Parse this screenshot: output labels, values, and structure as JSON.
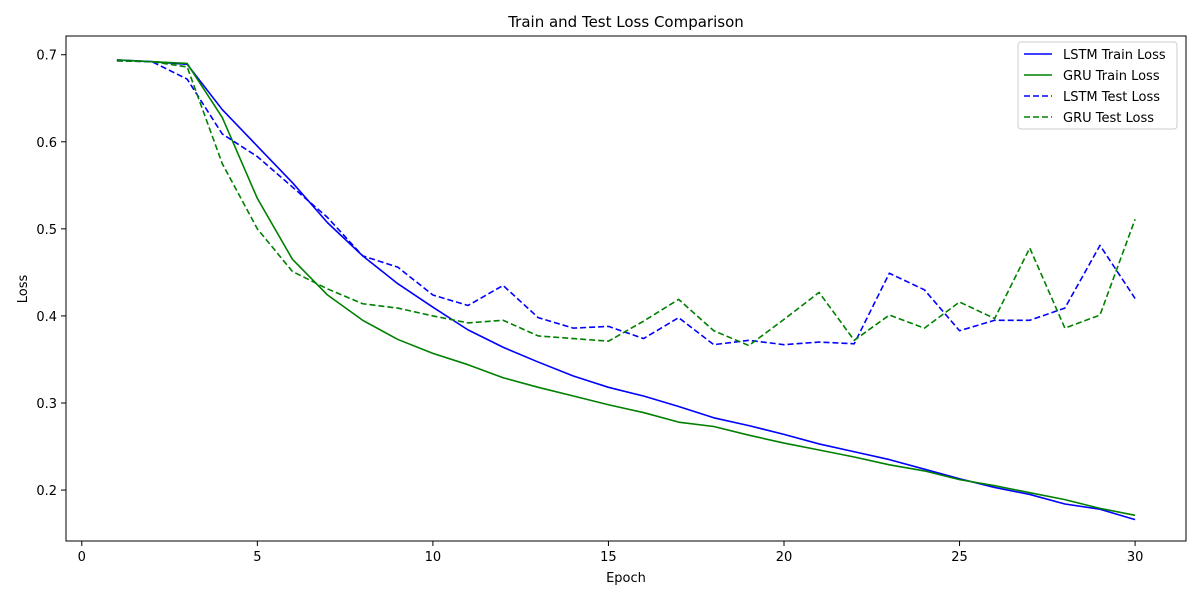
{
  "chart_data": {
    "type": "line",
    "title": "Train and Test Loss Comparison",
    "xlabel": "Epoch",
    "ylabel": "Loss",
    "xlim": [
      -0.45,
      31.45
    ],
    "ylim": [
      0.1415,
      0.7215
    ],
    "xticks": [
      0,
      5,
      10,
      15,
      20,
      25,
      30
    ],
    "yticks": [
      0.2,
      0.3,
      0.4,
      0.5,
      0.6,
      0.7
    ],
    "grid": false,
    "legend_position": "top-right",
    "x": [
      1,
      2,
      3,
      4,
      5,
      6,
      7,
      8,
      9,
      10,
      11,
      12,
      13,
      14,
      15,
      16,
      17,
      18,
      19,
      20,
      21,
      22,
      23,
      24,
      25,
      26,
      27,
      28,
      29,
      30
    ],
    "series": [
      {
        "name": "LSTM Train Loss",
        "color": "#0000ff",
        "dash": "solid",
        "values": [
          0.694,
          0.692,
          0.689,
          0.637,
          0.595,
          0.553,
          0.507,
          0.469,
          0.437,
          0.41,
          0.384,
          0.364,
          0.347,
          0.331,
          0.318,
          0.308,
          0.296,
          0.283,
          0.274,
          0.264,
          0.253,
          0.244,
          0.235,
          0.224,
          0.213,
          0.203,
          0.195,
          0.184,
          0.178,
          0.166
        ]
      },
      {
        "name": "GRU Train Loss",
        "color": "#008000",
        "dash": "solid",
        "values": [
          0.694,
          0.692,
          0.69,
          0.628,
          0.535,
          0.465,
          0.424,
          0.395,
          0.373,
          0.357,
          0.344,
          0.329,
          0.318,
          0.308,
          0.298,
          0.289,
          0.278,
          0.273,
          0.263,
          0.254,
          0.246,
          0.238,
          0.229,
          0.222,
          0.212,
          0.205,
          0.197,
          0.189,
          0.179,
          0.171
        ]
      },
      {
        "name": "LSTM Test Loss",
        "color": "#0000ff",
        "dash": "dashed",
        "values": [
          0.693,
          0.692,
          0.672,
          0.609,
          0.583,
          0.548,
          0.513,
          0.469,
          0.456,
          0.424,
          0.412,
          0.435,
          0.398,
          0.386,
          0.388,
          0.374,
          0.398,
          0.367,
          0.372,
          0.367,
          0.37,
          0.368,
          0.449,
          0.43,
          0.383,
          0.395,
          0.395,
          0.409,
          0.481,
          0.42
        ]
      },
      {
        "name": "GRU Test Loss",
        "color": "#008000",
        "dash": "dashed",
        "values": [
          0.693,
          0.692,
          0.686,
          0.575,
          0.5,
          0.451,
          0.431,
          0.414,
          0.409,
          0.4,
          0.392,
          0.395,
          0.377,
          0.374,
          0.371,
          0.394,
          0.419,
          0.383,
          0.366,
          0.396,
          0.427,
          0.372,
          0.401,
          0.386,
          0.416,
          0.397,
          0.478,
          0.386,
          0.401,
          0.511
        ]
      }
    ]
  }
}
